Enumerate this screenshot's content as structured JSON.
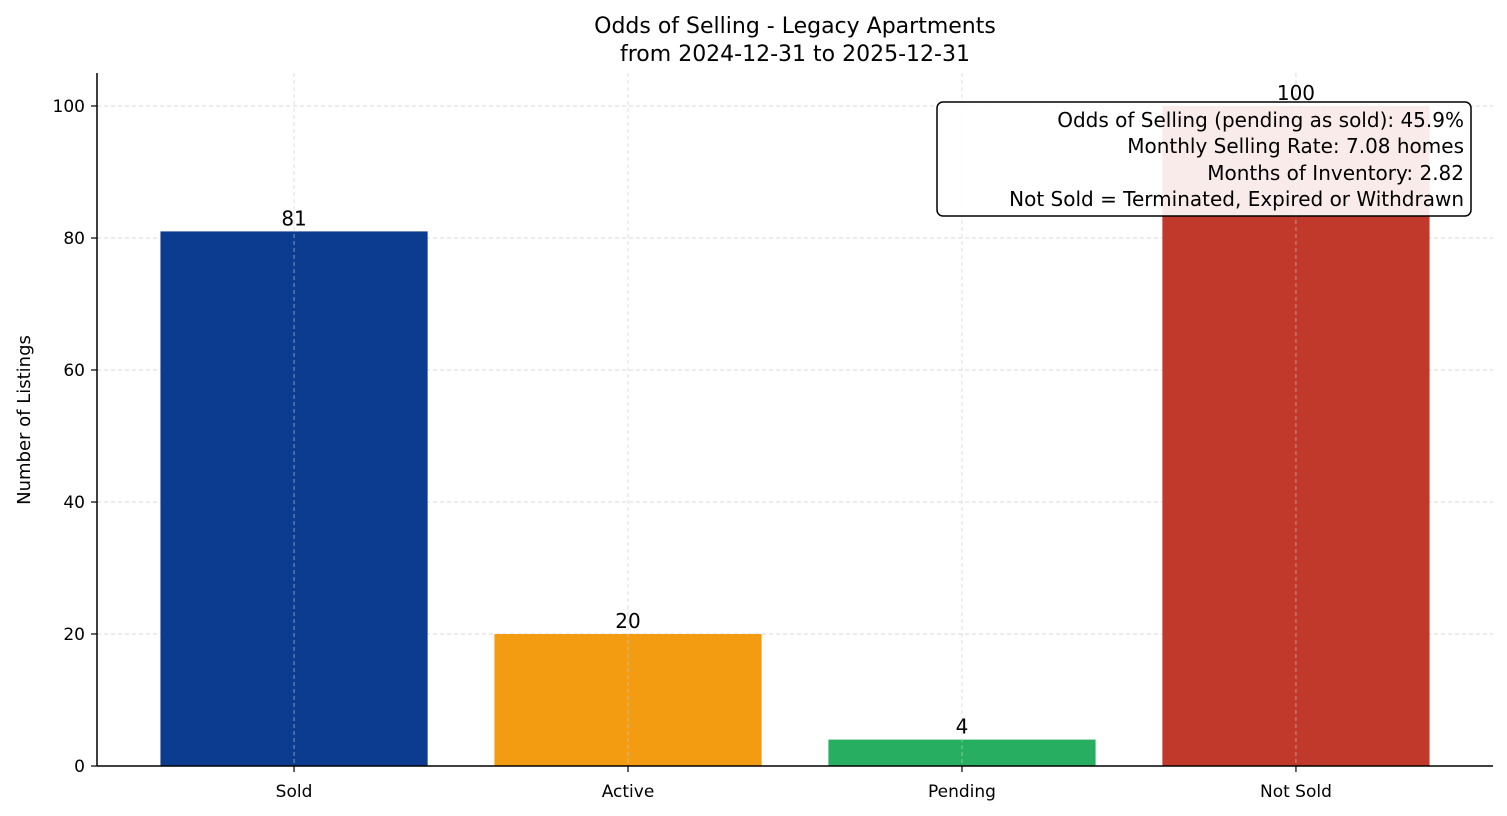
{
  "chart_data": {
    "type": "bar",
    "title": "Odds of Selling - Legacy Apartments",
    "subtitle": "from 2024-12-31 to 2025-12-31",
    "xlabel": "",
    "ylabel": "Number of Listings",
    "categories": [
      "Sold",
      "Active",
      "Pending",
      "Not Sold"
    ],
    "values": [
      81,
      20,
      4,
      100
    ],
    "colors": [
      "#0b3c8f",
      "#f39c12",
      "#27ae60",
      "#c0392b"
    ],
    "ylim": [
      0,
      105
    ],
    "yticks": [
      0,
      20,
      40,
      60,
      80,
      100
    ],
    "grid": true,
    "annotation": [
      "Odds of Selling (pending as sold): 45.9%",
      "Monthly Selling Rate: 7.08 homes",
      "Months of Inventory: 2.82",
      "Not Sold = Terminated, Expired or Withdrawn"
    ],
    "annotation_placement": "top-right"
  }
}
